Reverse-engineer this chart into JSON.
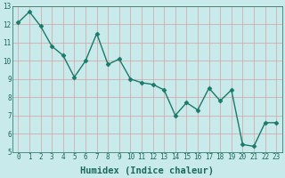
{
  "x": [
    0,
    1,
    2,
    3,
    4,
    5,
    6,
    7,
    8,
    9,
    10,
    11,
    12,
    13,
    14,
    15,
    16,
    17,
    18,
    19,
    20,
    21,
    22,
    23
  ],
  "y": [
    12.1,
    12.7,
    11.9,
    10.8,
    10.3,
    9.1,
    10.0,
    11.5,
    9.8,
    10.1,
    9.0,
    8.8,
    8.7,
    8.4,
    7.0,
    7.7,
    7.3,
    8.5,
    7.8,
    8.4,
    5.4,
    5.3,
    6.6,
    6.6
  ],
  "line_color": "#1a7a6a",
  "marker": "D",
  "marker_size": 2.5,
  "bg_color": "#c8eaea",
  "grid_color_v": "#d4a0a0",
  "grid_color_h": "#d4a0a0",
  "xlabel": "Humidex (Indice chaleur)",
  "xlim": [
    -0.5,
    23.5
  ],
  "ylim": [
    5,
    13
  ],
  "yticks": [
    5,
    6,
    7,
    8,
    9,
    10,
    11,
    12,
    13
  ],
  "xtick_labels": [
    "0",
    "1",
    "2",
    "3",
    "4",
    "5",
    "6",
    "7",
    "8",
    "9",
    "10",
    "11",
    "12",
    "13",
    "14",
    "15",
    "16",
    "17",
    "18",
    "19",
    "20",
    "21",
    "22",
    "23"
  ],
  "font_color": "#1a6a5a",
  "tick_fontsize": 5.5,
  "label_fontsize": 7.5,
  "linewidth": 1.0
}
